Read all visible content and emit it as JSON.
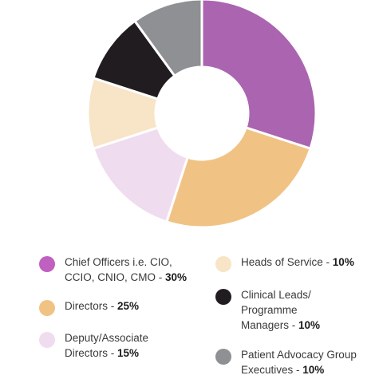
{
  "chart_data": {
    "type": "pie",
    "variant": "donut",
    "start": "top, clockwise",
    "slices": [
      {
        "label_lines": [
          "Chief Officers i.e. CIO,",
          "CCIO, CNIO, CMO - "
        ],
        "pct_label": "30%",
        "value": 30,
        "color": "#ab64b0",
        "swatch_color": "#c060c0"
      },
      {
        "label_lines": [
          "Directors - "
        ],
        "pct_label": "25%",
        "value": 25,
        "color": "#f0c384",
        "swatch_color": "#f0c384"
      },
      {
        "label_lines": [
          "Deputy/Associate",
          "Directors - "
        ],
        "pct_label": "15%",
        "value": 15,
        "color": "#f0dcef",
        "swatch_color": "#f0dcef"
      },
      {
        "label_lines": [
          "Heads of Service - "
        ],
        "pct_label": "10%",
        "value": 10,
        "color": "#f8e4c6",
        "swatch_color": "#f8e4c6"
      },
      {
        "label_lines": [
          "Clinical Leads/",
          "Programme",
          "Managers - "
        ],
        "pct_label": "10%",
        "value": 10,
        "color": "#201c20",
        "swatch_color": "#201c20"
      },
      {
        "label_lines": [
          "Patient Advocacy Group",
          "Executives - "
        ],
        "pct_label": "10%",
        "value": 10,
        "color": "#8f9094",
        "swatch_color": "#8f9094"
      }
    ],
    "legend_placement": "bottom, two columns",
    "slice_border_color": "#ffffff"
  }
}
